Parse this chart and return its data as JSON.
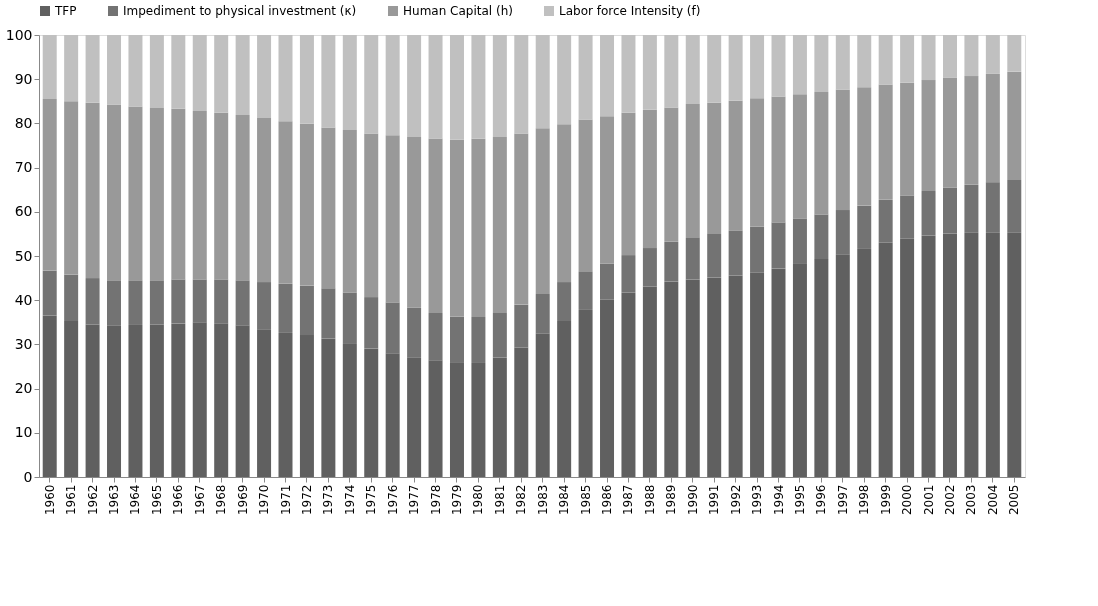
{
  "chart_data": {
    "type": "bar",
    "stacked": true,
    "legend": "top",
    "grid": false,
    "categories": [
      "1960",
      "1961",
      "1962",
      "1963",
      "1964",
      "1965",
      "1966",
      "1967",
      "1968",
      "1969",
      "1970",
      "1971",
      "1972",
      "1973",
      "1974",
      "1975",
      "1976",
      "1977",
      "1978",
      "1979",
      "1980",
      "1981",
      "1982",
      "1983",
      "1984",
      "1985",
      "1986",
      "1987",
      "1988",
      "1989",
      "1990",
      "1991",
      "1992",
      "1993",
      "1994",
      "1995",
      "1996",
      "1997",
      "1998",
      "1999",
      "2000",
      "2001",
      "2002",
      "2003",
      "2004",
      "2005"
    ],
    "ylim": [
      0,
      100
    ],
    "yticks": [
      0,
      10,
      20,
      30,
      40,
      50,
      60,
      70,
      80,
      90,
      100
    ],
    "series": [
      {
        "name": "TFP",
        "color": "#606060",
        "values": [
          36.5,
          35.3,
          34.5,
          34.2,
          34.4,
          34.5,
          34.7,
          35.0,
          34.8,
          34.2,
          33.4,
          32.6,
          32.1,
          31.3,
          30.1,
          29.1,
          28.0,
          27.1,
          26.4,
          25.8,
          25.8,
          27.0,
          29.3,
          32.4,
          35.3,
          37.8,
          40.1,
          41.7,
          43.1,
          44.2,
          44.7,
          45.1,
          45.6,
          46.2,
          47.2,
          48.2,
          49.3,
          50.4,
          51.6,
          53.0,
          53.9,
          54.6,
          55.1,
          55.4,
          55.4,
          55.4
        ]
      },
      {
        "name": "Impediment to physical investment (κ)",
        "color": "#737373",
        "values": [
          10.2,
          10.5,
          10.5,
          10.3,
          10.1,
          10.0,
          10.0,
          9.7,
          9.9,
          10.3,
          10.7,
          11.1,
          11.2,
          11.4,
          11.6,
          11.6,
          11.5,
          11.2,
          10.7,
          10.5,
          10.4,
          10.1,
          9.7,
          9.0,
          8.8,
          8.6,
          8.2,
          8.5,
          8.7,
          9.0,
          9.4,
          9.9,
          10.2,
          10.4,
          10.4,
          10.3,
          10.1,
          10.0,
          9.8,
          9.7,
          9.8,
          10.1,
          10.4,
          10.7,
          11.3,
          11.8
        ]
      },
      {
        "name": "Human Capital (h)",
        "color": "#999999",
        "values": [
          38.8,
          39.2,
          39.7,
          39.8,
          39.3,
          39.0,
          38.6,
          38.1,
          37.7,
          37.4,
          37.1,
          36.8,
          36.6,
          36.4,
          36.8,
          37.0,
          37.8,
          38.6,
          39.5,
          40.0,
          40.3,
          39.8,
          38.7,
          37.5,
          35.7,
          34.5,
          33.3,
          32.2,
          31.3,
          30.4,
          30.3,
          29.7,
          29.3,
          29.1,
          28.5,
          28.1,
          27.7,
          27.2,
          26.8,
          26.1,
          25.5,
          25.1,
          24.8,
          24.6,
          24.5,
          24.5
        ]
      },
      {
        "name": "Labor force Intensity (f)",
        "color": "#c0c0c0",
        "values": [
          14.5,
          15.0,
          15.3,
          15.7,
          16.2,
          16.5,
          16.7,
          17.2,
          17.6,
          18.1,
          18.8,
          19.5,
          20.1,
          20.9,
          21.5,
          22.3,
          22.7,
          23.1,
          23.4,
          23.7,
          23.5,
          23.1,
          22.3,
          21.1,
          20.2,
          19.1,
          18.4,
          17.6,
          16.9,
          16.4,
          15.6,
          15.3,
          14.9,
          14.3,
          13.9,
          13.4,
          12.9,
          12.4,
          11.8,
          11.2,
          10.8,
          10.2,
          9.7,
          9.3,
          8.8,
          8.3
        ]
      }
    ]
  }
}
